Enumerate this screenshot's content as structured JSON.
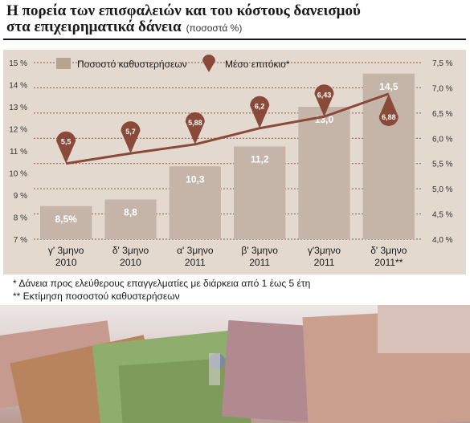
{
  "title": {
    "line1": "Η πορεία των επισφαλειών και του κόστους δανεισμού",
    "line2": "στα επιχειρηματικά δάνεια",
    "unit": "(ποσοστά %)"
  },
  "chart_data": {
    "type": "bar",
    "categories": [
      [
        "γ' 3μηνο",
        "2010"
      ],
      [
        "δ' 3μηνο",
        "2010"
      ],
      [
        "α' 3μηνο",
        "2011"
      ],
      [
        "β' 3μηνο",
        "2011"
      ],
      [
        "γ'3μηνο",
        "2011"
      ],
      [
        "δ' 3μηνο",
        "2011**"
      ]
    ],
    "series": [
      {
        "name": "Ποσοστό καθυστερήσεων",
        "type": "bar",
        "axis": "left",
        "values": [
          8.5,
          8.8,
          10.3,
          11.2,
          13.0,
          14.5
        ],
        "labels": [
          "8,5%",
          "8,8",
          "10,3",
          "11,2",
          "13,0",
          "14,5"
        ]
      },
      {
        "name": "Μέσο επιτόκιο*",
        "type": "line",
        "axis": "right",
        "values": [
          5.5,
          5.7,
          5.88,
          6.2,
          6.43,
          6.88
        ],
        "labels": [
          "5,5",
          "5,7",
          "5,88",
          "6,2",
          "6,43",
          "6,88"
        ]
      }
    ],
    "left_axis": {
      "ylim": [
        7,
        15
      ],
      "ticks": [
        15,
        14,
        13,
        12,
        11,
        10,
        9,
        8,
        7
      ],
      "tick_labels": [
        "15 %",
        "14 %",
        "13 %",
        "12 %",
        "11 %",
        "10 %",
        "9 %",
        "8 %",
        "7 %"
      ]
    },
    "right_axis": {
      "ylim": [
        4.0,
        7.5
      ],
      "ticks": [
        7.5,
        7.0,
        6.5,
        6.0,
        5.5,
        5.0,
        4.5,
        4.0
      ],
      "tick_labels": [
        "7,5 %",
        "7,0 %",
        "6,5 %",
        "6,0 %",
        "5,5 %",
        "5,0 %",
        "4,5 %",
        "4,0 %"
      ]
    },
    "grid": true,
    "legend": "top"
  },
  "footnotes": [
    "* Δάνεια προς ελεύθερους επαγγελματίες με διάρκεια από 1 έως 5 έτη",
    "** Εκτίμηση ποσοστού καθυστερήσεων"
  ],
  "colors": {
    "bar": "#c5b5a8",
    "line": "#8a4a3a",
    "marker": "#8a4a3a",
    "panel": "#e4d9cf",
    "grid": "#8a5a4a"
  }
}
